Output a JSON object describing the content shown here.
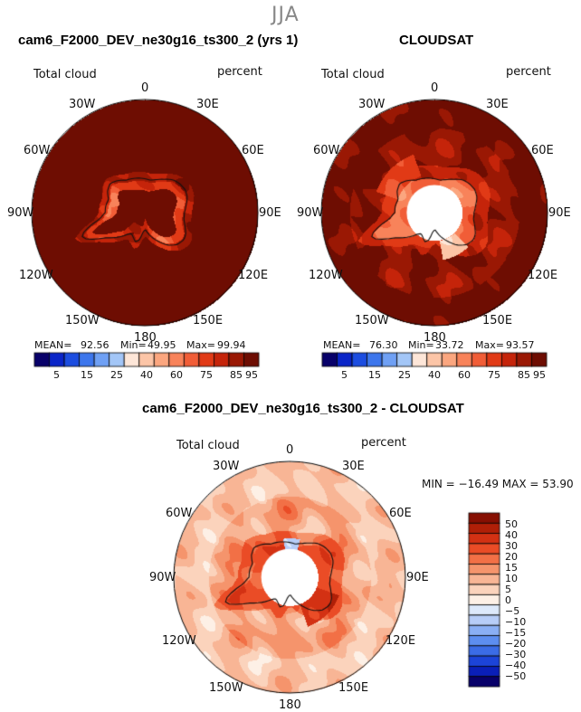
{
  "page": {
    "season": "JJA",
    "variable_label": "Total cloud",
    "units_label": "percent"
  },
  "colors": {
    "positive_scale": [
      "#08016a",
      "#0a25c8",
      "#1c4de0",
      "#3d76ec",
      "#6fa0f4",
      "#a3c6f7",
      "#fde6d8",
      "#fcc5a7",
      "#fba67f",
      "#f8835a",
      "#f15d37",
      "#e13a16",
      "#c5240a",
      "#9a1804",
      "#6e0d02"
    ],
    "diff_scale": [
      "#08016a",
      "#0a1fb8",
      "#1c44d8",
      "#3b6ce6",
      "#5d8ef0",
      "#8aaff5",
      "#b7cdf8",
      "#dde9fb",
      "#fdf0e6",
      "#fbd3bc",
      "#f8b595",
      "#f5946c",
      "#f27046",
      "#ea4c26",
      "#d33113",
      "#b01f07",
      "#870f02"
    ]
  },
  "chart_data": [
    {
      "type": "heatmap",
      "projection": "south-polar-stereographic",
      "title": "cam6_F2000_DEV_ne30g16_ts300_2 (yrs 1)",
      "left_label": "Total cloud",
      "right_label": "percent",
      "longitude_labels": [
        "0",
        "30E",
        "60E",
        "90E",
        "120E",
        "150E",
        "180",
        "150W",
        "120W",
        "90W",
        "60W",
        "30W"
      ],
      "stats": {
        "mean_label": "MEAN=",
        "mean": "92.56",
        "min_label": "Min=",
        "min": "49.95",
        "max_label": "Max=",
        "max": "99.94"
      },
      "colorbar_ticks": [
        "5",
        "15",
        "25",
        "40",
        "60",
        "75",
        "85",
        "95"
      ],
      "range": [
        0,
        100
      ],
      "has_pole_hole": false
    },
    {
      "type": "heatmap",
      "projection": "south-polar-stereographic",
      "title": "CLOUDSAT",
      "left_label": "Total cloud",
      "right_label": "percent",
      "longitude_labels": [
        "0",
        "30E",
        "60E",
        "90E",
        "120E",
        "150E",
        "180",
        "150W",
        "120W",
        "90W",
        "60W",
        "30W"
      ],
      "stats": {
        "mean_label": "MEAN=",
        "mean": "76.30",
        "min_label": "Min=",
        "min": "33.72",
        "max_label": "Max=",
        "max": "93.57"
      },
      "colorbar_ticks": [
        "5",
        "15",
        "25",
        "40",
        "60",
        "75",
        "85",
        "95"
      ],
      "range": [
        0,
        100
      ],
      "has_pole_hole": true
    },
    {
      "type": "heatmap",
      "projection": "south-polar-stereographic",
      "title": "cam6_F2000_DEV_ne30g16_ts300_2 - CLOUDSAT",
      "left_label": "Total cloud",
      "right_label": "percent",
      "longitude_labels": [
        "0",
        "30E",
        "60E",
        "90E",
        "120E",
        "150E",
        "180",
        "150W",
        "120W",
        "90W",
        "60W",
        "30W"
      ],
      "stats_line": "MIN = −16.49  MAX =  53.90",
      "colorbar_ticks": [
        "50",
        "40",
        "30",
        "20",
        "15",
        "10",
        "5",
        "0",
        "−5",
        "−10",
        "−15",
        "−20",
        "−30",
        "−40",
        "−50"
      ],
      "range": [
        -16.49,
        53.9
      ],
      "has_pole_hole": true
    }
  ]
}
